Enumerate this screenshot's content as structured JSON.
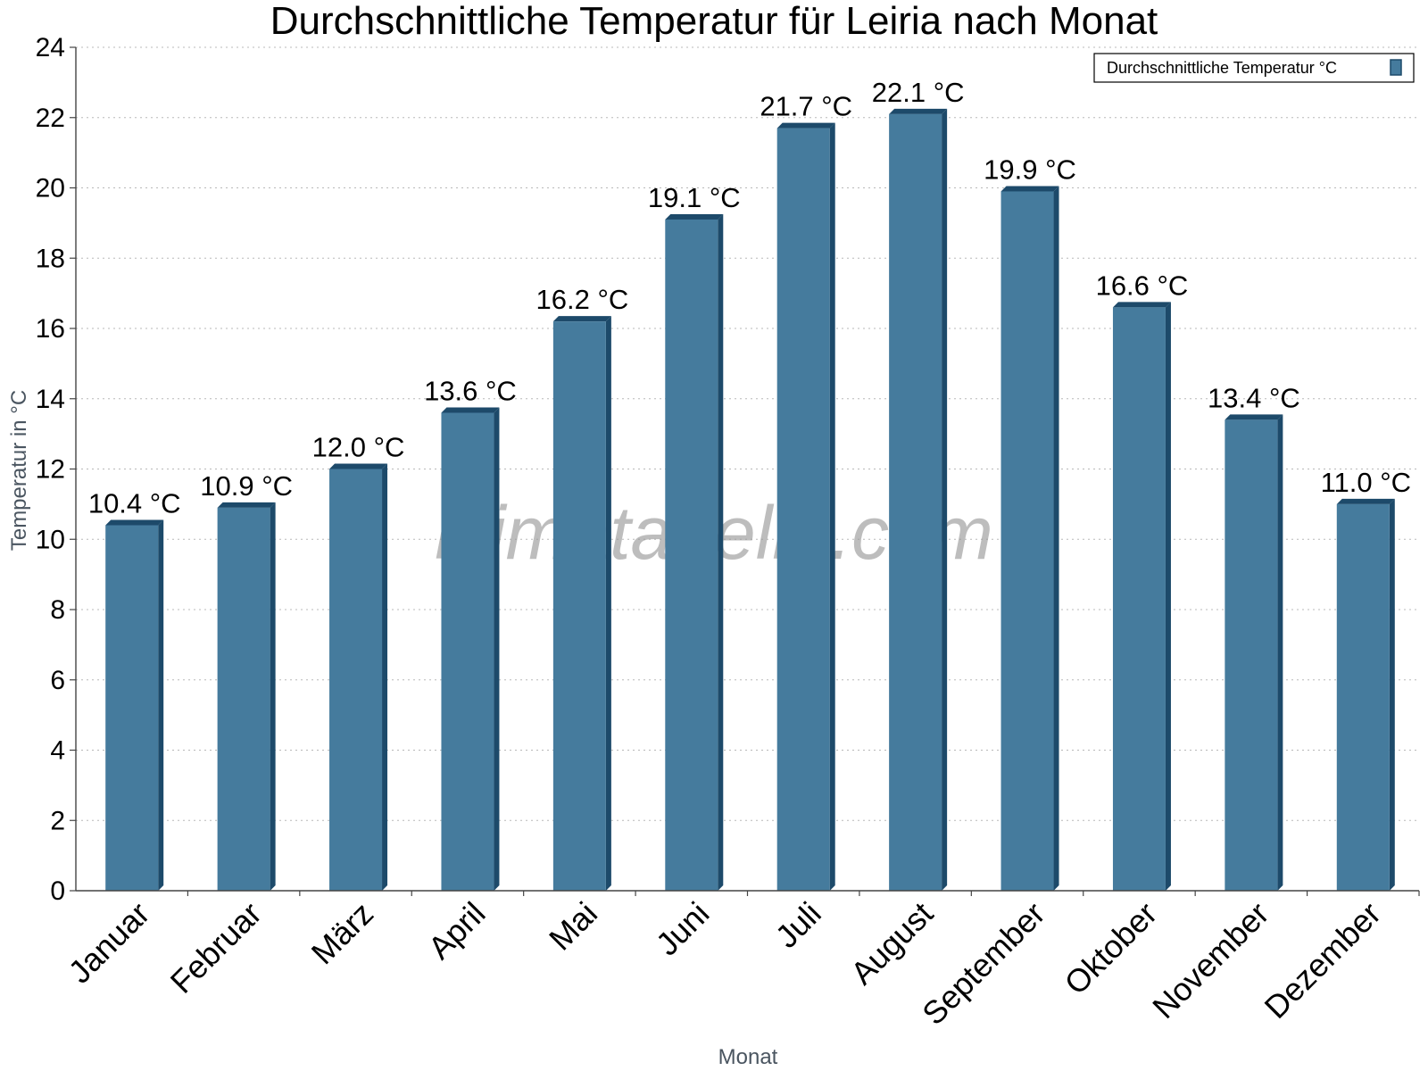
{
  "chart_data": {
    "type": "bar",
    "title": "Durchschnittliche Temperatur für Leiria nach Monat",
    "xlabel": "Monat",
    "ylabel": "Temperatur in °C",
    "ylim": [
      0,
      24
    ],
    "yticks": [
      0,
      2,
      4,
      6,
      8,
      10,
      12,
      14,
      16,
      18,
      20,
      22,
      24
    ],
    "grid": true,
    "legend_position": "top-right",
    "categories": [
      "Januar",
      "Februar",
      "März",
      "April",
      "Mai",
      "Juni",
      "Juli",
      "August",
      "September",
      "Oktober",
      "November",
      "Dezember"
    ],
    "series": [
      {
        "name": "Durchschnittliche Temperatur °C",
        "color": "#457b9d",
        "values": [
          10.4,
          10.9,
          12.0,
          13.6,
          16.2,
          19.1,
          21.7,
          22.1,
          19.9,
          16.6,
          13.4,
          11.0
        ],
        "labels": [
          "10.4 °C",
          "10.9 °C",
          "12.0 °C",
          "13.6 °C",
          "16.2 °C",
          "19.1 °C",
          "21.7 °C",
          "22.1 °C",
          "19.9 °C",
          "16.6 °C",
          "13.4 °C",
          "11.0 °C"
        ]
      }
    ]
  },
  "watermark": "klimatabelle.com",
  "colors": {
    "bar_front": "#457b9d",
    "bar_side": "#1d4a6a",
    "grid": "#b8b8b8",
    "axis": "#444444"
  }
}
